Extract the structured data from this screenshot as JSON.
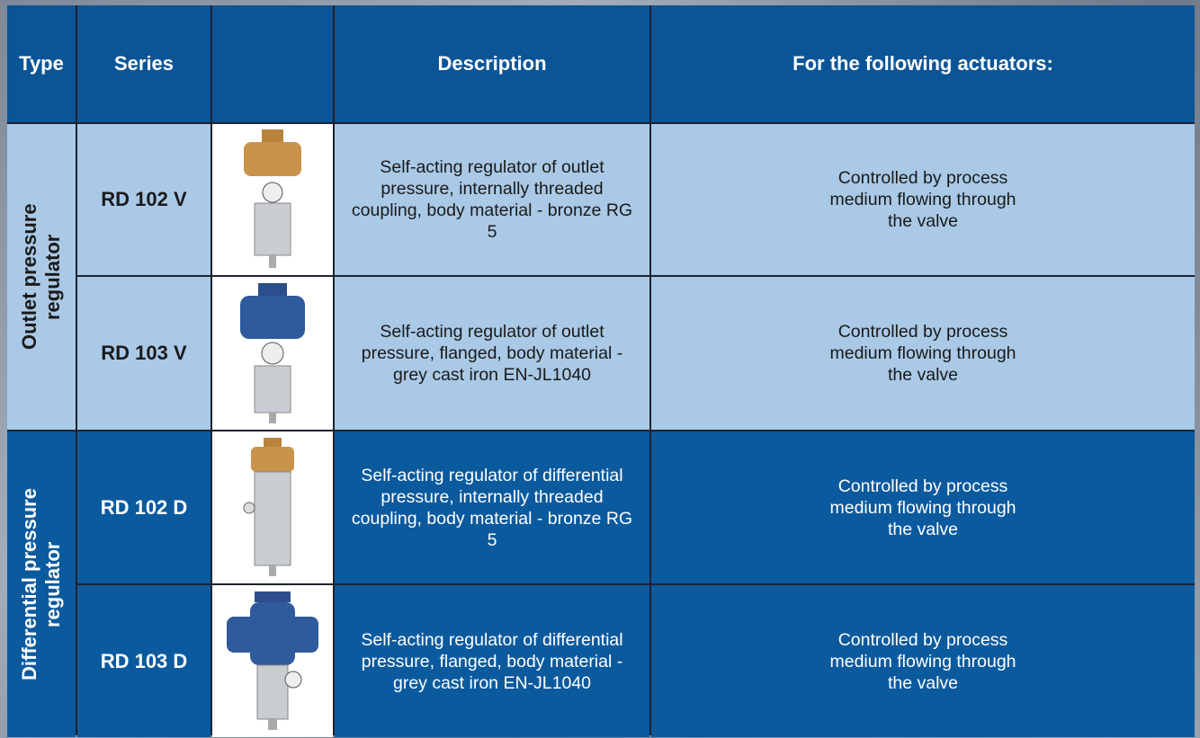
{
  "table": {
    "headers": [
      "Type",
      "Series",
      "Description",
      "For the following actuators:"
    ],
    "groups": [
      {
        "type": "Outlet pressure regulator",
        "rows": [
          {
            "series": "RD 102 V",
            "description": "Self-acting regulator of outlet pressure, internally threaded coupling, body material - bronze RG 5",
            "actuators": "Controlled by process medium flowing through the valve"
          },
          {
            "series": "RD 103 V",
            "description": "Self-acting regulator of outlet pressure, flanged, body material - grey cast iron EN-JL1040",
            "actuators": "Controlled by process medium flowing through the valve"
          }
        ]
      },
      {
        "type": "Differential pressure regulator",
        "rows": [
          {
            "series": "RD 102 D",
            "description": "Self-acting regulator of differential pressure, internally threaded coupling, body material - bronze RG 5",
            "actuators": "Controlled by process medium flowing through the valve"
          },
          {
            "series": "RD 103 D",
            "description": "Self-acting regulator of differential pressure, flanged, body material - grey cast iron EN-JL1040",
            "actuators": "Controlled by process medium flowing through the valve"
          }
        ]
      }
    ]
  }
}
